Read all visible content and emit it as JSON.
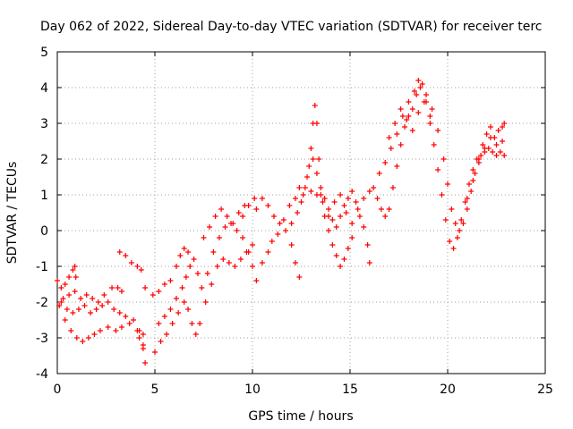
{
  "chart_data": {
    "type": "scatter",
    "title": "Day 062 of 2022, Sidereal Day-to-day VTEC variation (SDTVAR) for receiver terc",
    "xlabel": "GPS time / hours",
    "ylabel": "SDTVAR / TECUs",
    "xlim": [
      0,
      25
    ],
    "ylim": [
      -4,
      5
    ],
    "xticks": [
      0,
      5,
      10,
      15,
      20,
      25
    ],
    "yticks": [
      -4,
      -3,
      -2,
      -1,
      0,
      1,
      2,
      3,
      4,
      5
    ],
    "grid": true,
    "marker": "+",
    "color": "#ff0000",
    "series": [
      {
        "name": "SDTVAR",
        "points": [
          [
            0.0,
            -1.4
          ],
          [
            0.2,
            -1.6
          ],
          [
            0.4,
            -1.5
          ],
          [
            0.6,
            -1.3
          ],
          [
            0.8,
            -1.1
          ],
          [
            0.9,
            -1.0
          ],
          [
            0.95,
            -1.3
          ],
          [
            0.3,
            -1.9
          ],
          [
            0.6,
            -1.8
          ],
          [
            0.9,
            -1.7
          ],
          [
            1.2,
            -1.9
          ],
          [
            1.5,
            -1.8
          ],
          [
            1.8,
            -1.9
          ],
          [
            2.1,
            -2.0
          ],
          [
            2.4,
            -1.8
          ],
          [
            2.8,
            -1.6
          ],
          [
            3.1,
            -1.6
          ],
          [
            3.3,
            -1.7
          ],
          [
            0.1,
            -2.1
          ],
          [
            0.4,
            -2.5
          ],
          [
            0.7,
            -2.8
          ],
          [
            1.0,
            -3.0
          ],
          [
            1.3,
            -3.1
          ],
          [
            1.6,
            -3.0
          ],
          [
            1.9,
            -2.9
          ],
          [
            2.2,
            -2.8
          ],
          [
            2.6,
            -2.7
          ],
          [
            3.0,
            -2.8
          ],
          [
            3.3,
            -2.7
          ],
          [
            3.7,
            -2.6
          ],
          [
            4.1,
            -2.8
          ],
          [
            4.4,
            -2.9
          ],
          [
            0.2,
            -2.0
          ],
          [
            0.5,
            -2.2
          ],
          [
            0.8,
            -2.3
          ],
          [
            1.1,
            -2.2
          ],
          [
            1.4,
            -2.1
          ],
          [
            1.7,
            -2.3
          ],
          [
            2.0,
            -2.2
          ],
          [
            2.3,
            -2.1
          ],
          [
            2.6,
            -2.0
          ],
          [
            2.9,
            -2.2
          ],
          [
            3.2,
            -2.3
          ],
          [
            3.5,
            -2.4
          ],
          [
            3.9,
            -2.5
          ],
          [
            4.2,
            -2.8
          ],
          [
            4.4,
            -3.2
          ],
          [
            3.2,
            -0.6
          ],
          [
            3.5,
            -0.7
          ],
          [
            3.8,
            -0.9
          ],
          [
            4.1,
            -1.0
          ],
          [
            4.3,
            -1.1
          ],
          [
            4.2,
            -3.0
          ],
          [
            4.4,
            -3.3
          ],
          [
            4.5,
            -3.7
          ],
          [
            4.5,
            -1.6
          ],
          [
            4.9,
            -1.8
          ],
          [
            5.2,
            -1.7
          ],
          [
            5.5,
            -1.5
          ],
          [
            5.8,
            -1.4
          ],
          [
            5.0,
            -3.4
          ],
          [
            5.3,
            -3.1
          ],
          [
            5.6,
            -2.9
          ],
          [
            5.9,
            -2.6
          ],
          [
            6.2,
            -2.3
          ],
          [
            6.5,
            -2.0
          ],
          [
            6.7,
            -2.2
          ],
          [
            6.9,
            -2.6
          ],
          [
            7.1,
            -2.9
          ],
          [
            7.3,
            -2.6
          ],
          [
            7.6,
            -2.0
          ],
          [
            7.9,
            -1.5
          ],
          [
            8.2,
            -1.0
          ],
          [
            8.5,
            -0.8
          ],
          [
            8.8,
            -0.9
          ],
          [
            9.1,
            -1.0
          ],
          [
            9.4,
            -0.8
          ],
          [
            9.7,
            -0.6
          ],
          [
            10.0,
            -0.4
          ],
          [
            5.2,
            -2.6
          ],
          [
            5.5,
            -2.4
          ],
          [
            5.8,
            -2.2
          ],
          [
            6.1,
            -1.9
          ],
          [
            6.4,
            -1.6
          ],
          [
            6.6,
            -1.3
          ],
          [
            6.8,
            -1.0
          ],
          [
            7.0,
            -0.8
          ],
          [
            7.2,
            -1.2
          ],
          [
            7.4,
            -1.6
          ],
          [
            7.7,
            -1.2
          ],
          [
            8.0,
            -0.6
          ],
          [
            8.3,
            -0.2
          ],
          [
            8.6,
            0.1
          ],
          [
            8.9,
            0.2
          ],
          [
            9.2,
            0.0
          ],
          [
            9.5,
            0.4
          ],
          [
            9.8,
            0.7
          ],
          [
            10.1,
            0.9
          ],
          [
            6.1,
            -1.0
          ],
          [
            6.3,
            -0.7
          ],
          [
            6.5,
            -0.5
          ],
          [
            6.7,
            -0.6
          ],
          [
            7.5,
            -0.2
          ],
          [
            7.8,
            0.1
          ],
          [
            8.1,
            0.4
          ],
          [
            8.4,
            0.6
          ],
          [
            8.7,
            0.4
          ],
          [
            9.0,
            0.2
          ],
          [
            9.3,
            0.5
          ],
          [
            9.6,
            0.7
          ],
          [
            9.5,
            -0.2
          ],
          [
            9.8,
            -0.6
          ],
          [
            10.0,
            -1.0
          ],
          [
            10.2,
            -1.4
          ],
          [
            10.5,
            -0.9
          ],
          [
            10.8,
            -0.6
          ],
          [
            11.0,
            -0.3
          ],
          [
            11.3,
            -0.1
          ],
          [
            11.6,
            0.3
          ],
          [
            11.9,
            0.7
          ],
          [
            12.2,
            0.9
          ],
          [
            12.4,
            1.2
          ],
          [
            10.2,
            0.6
          ],
          [
            10.5,
            0.9
          ],
          [
            10.8,
            0.7
          ],
          [
            11.1,
            0.4
          ],
          [
            11.4,
            0.2
          ],
          [
            11.7,
            0.0
          ],
          [
            12.0,
            -0.4
          ],
          [
            12.2,
            -0.9
          ],
          [
            12.4,
            -1.3
          ],
          [
            12.0,
            0.2
          ],
          [
            12.3,
            0.5
          ],
          [
            12.6,
            1.0
          ],
          [
            12.8,
            1.5
          ],
          [
            13.0,
            2.3
          ],
          [
            13.1,
            3.0
          ],
          [
            13.2,
            3.5
          ],
          [
            13.3,
            3.0
          ],
          [
            13.4,
            2.0
          ],
          [
            13.5,
            1.0
          ],
          [
            13.7,
            0.4
          ],
          [
            13.9,
            0.0
          ],
          [
            14.1,
            -0.4
          ],
          [
            14.3,
            -0.7
          ],
          [
            14.5,
            -1.0
          ],
          [
            14.7,
            -0.8
          ],
          [
            14.9,
            -0.5
          ],
          [
            15.1,
            -0.2
          ],
          [
            12.5,
            0.8
          ],
          [
            12.7,
            1.2
          ],
          [
            12.9,
            1.8
          ],
          [
            13.1,
            2.0
          ],
          [
            13.3,
            1.6
          ],
          [
            13.5,
            1.2
          ],
          [
            13.7,
            0.9
          ],
          [
            13.9,
            0.6
          ],
          [
            14.1,
            0.3
          ],
          [
            14.3,
            0.1
          ],
          [
            14.5,
            0.4
          ],
          [
            14.7,
            0.7
          ],
          [
            14.9,
            0.9
          ],
          [
            15.1,
            1.1
          ],
          [
            15.3,
            0.8
          ],
          [
            15.5,
            0.4
          ],
          [
            15.7,
            0.1
          ],
          [
            15.9,
            -0.4
          ],
          [
            16.0,
            -0.9
          ],
          [
            13.0,
            1.1
          ],
          [
            13.3,
            1.0
          ],
          [
            13.6,
            0.8
          ],
          [
            13.9,
            0.4
          ],
          [
            14.2,
            0.8
          ],
          [
            14.5,
            1.0
          ],
          [
            14.8,
            0.5
          ],
          [
            15.1,
            0.2
          ],
          [
            15.4,
            0.6
          ],
          [
            15.7,
            0.9
          ],
          [
            16.0,
            1.1
          ],
          [
            16.2,
            1.2
          ],
          [
            16.4,
            0.9
          ],
          [
            16.6,
            0.6
          ],
          [
            16.8,
            0.4
          ],
          [
            17.0,
            0.6
          ],
          [
            17.2,
            1.2
          ],
          [
            17.4,
            1.8
          ],
          [
            17.6,
            2.4
          ],
          [
            17.8,
            2.9
          ],
          [
            18.0,
            3.2
          ],
          [
            18.2,
            3.4
          ],
          [
            18.4,
            3.8
          ],
          [
            18.5,
            4.2
          ],
          [
            18.7,
            4.1
          ],
          [
            18.9,
            3.6
          ],
          [
            19.1,
            3.0
          ],
          [
            19.3,
            2.4
          ],
          [
            19.5,
            1.7
          ],
          [
            19.7,
            1.0
          ],
          [
            19.9,
            0.3
          ],
          [
            20.1,
            -0.3
          ],
          [
            20.3,
            -0.5
          ],
          [
            20.5,
            -0.2
          ],
          [
            20.7,
            0.3
          ],
          [
            20.9,
            0.8
          ],
          [
            21.1,
            1.3
          ],
          [
            21.3,
            1.7
          ],
          [
            21.5,
            2.0
          ],
          [
            21.7,
            2.1
          ],
          [
            21.9,
            2.2
          ],
          [
            22.1,
            2.3
          ],
          [
            22.3,
            2.2
          ],
          [
            22.5,
            2.1
          ],
          [
            22.7,
            2.2
          ],
          [
            22.9,
            2.1
          ],
          [
            16.5,
            1.6
          ],
          [
            16.8,
            1.9
          ],
          [
            17.1,
            2.3
          ],
          [
            17.4,
            2.7
          ],
          [
            17.7,
            3.2
          ],
          [
            18.0,
            3.6
          ],
          [
            18.3,
            3.9
          ],
          [
            18.6,
            4.0
          ],
          [
            18.9,
            3.8
          ],
          [
            19.2,
            3.4
          ],
          [
            19.5,
            2.8
          ],
          [
            19.8,
            2.0
          ],
          [
            20.0,
            1.3
          ],
          [
            20.2,
            0.6
          ],
          [
            20.4,
            0.2
          ],
          [
            20.6,
            0.0
          ],
          [
            20.8,
            0.2
          ],
          [
            21.0,
            0.6
          ],
          [
            21.2,
            1.1
          ],
          [
            21.4,
            1.6
          ],
          [
            21.6,
            2.0
          ],
          [
            21.8,
            2.4
          ],
          [
            22.0,
            2.7
          ],
          [
            22.2,
            2.9
          ],
          [
            22.4,
            2.6
          ],
          [
            22.6,
            2.8
          ],
          [
            22.8,
            2.9
          ],
          [
            22.9,
            3.0
          ],
          [
            17.0,
            2.6
          ],
          [
            17.3,
            3.0
          ],
          [
            17.6,
            3.4
          ],
          [
            17.9,
            3.1
          ],
          [
            18.2,
            2.8
          ],
          [
            18.5,
            3.3
          ],
          [
            18.8,
            3.6
          ],
          [
            19.1,
            3.2
          ],
          [
            21.0,
            0.9
          ],
          [
            21.3,
            1.4
          ],
          [
            21.6,
            1.9
          ],
          [
            21.9,
            2.3
          ],
          [
            22.2,
            2.6
          ],
          [
            22.5,
            2.4
          ],
          [
            22.8,
            2.5
          ]
        ]
      }
    ]
  }
}
